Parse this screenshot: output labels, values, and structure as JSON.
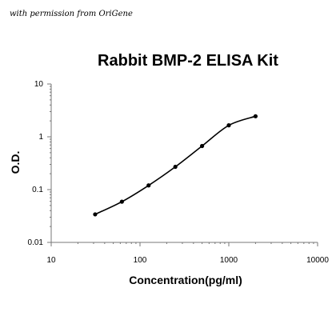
{
  "credit": "with permission from OriGene",
  "chart_data": {
    "type": "line",
    "title": "Rabbit BMP-2 ELISA Kit",
    "xlabel": "Concentration(pg/ml)",
    "ylabel": "O.D.",
    "x_scale": "log",
    "y_scale": "log",
    "xlim": [
      10,
      10000
    ],
    "ylim": [
      0.01,
      10
    ],
    "x_ticks": [
      {
        "value": 10,
        "label": "10"
      },
      {
        "value": 100,
        "label": "100"
      },
      {
        "value": 1000,
        "label": "1000"
      },
      {
        "value": 10000,
        "label": "10000"
      }
    ],
    "y_ticks": [
      {
        "value": 0.01,
        "label": "0.01"
      },
      {
        "value": 0.1,
        "label": "0.1"
      },
      {
        "value": 1,
        "label": "1"
      },
      {
        "value": 10,
        "label": "10"
      }
    ],
    "grid": false,
    "series": [
      {
        "x": [
          31.25,
          62.5,
          125,
          250,
          500,
          1000,
          2000
        ],
        "y": [
          0.034,
          0.059,
          0.12,
          0.27,
          0.67,
          1.65,
          2.45
        ],
        "color": "#000000",
        "marker": "circle"
      }
    ]
  }
}
